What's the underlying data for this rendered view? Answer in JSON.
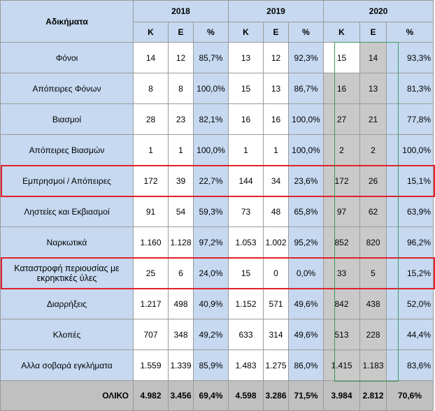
{
  "header": {
    "title": "Αδικήματα",
    "years": [
      "2018",
      "2019",
      "2020"
    ],
    "sub": [
      "Κ",
      "Ε",
      "%"
    ]
  },
  "rows": [
    {
      "label": "Φόνοι",
      "v": [
        "14",
        "12",
        "85,7%",
        "13",
        "12",
        "92,3%",
        "15",
        "14",
        "93,3%"
      ]
    },
    {
      "label": "Απόπειρες Φόνων",
      "v": [
        "8",
        "8",
        "100,0%",
        "15",
        "13",
        "86,7%",
        "16",
        "13",
        "81,3%"
      ]
    },
    {
      "label": "Βιασμοί",
      "v": [
        "28",
        "23",
        "82,1%",
        "16",
        "16",
        "100,0%",
        "27",
        "21",
        "77,8%"
      ]
    },
    {
      "label": "Απόπειρες Βιασμών",
      "v": [
        "1",
        "1",
        "100,0%",
        "1",
        "1",
        "100,0%",
        "2",
        "2",
        "100,0%"
      ]
    },
    {
      "label": "Εμπρησμοί / Απόπειρες",
      "v": [
        "172",
        "39",
        "22,7%",
        "144",
        "34",
        "23,6%",
        "172",
        "26",
        "15,1%"
      ],
      "highlight": true
    },
    {
      "label": "Ληστείες και Εκβιασμοί",
      "v": [
        "91",
        "54",
        "59,3%",
        "73",
        "48",
        "65,8%",
        "97",
        "62",
        "63,9%"
      ]
    },
    {
      "label": "Ναρκωτικά",
      "v": [
        "1.160",
        "1.128",
        "97,2%",
        "1.053",
        "1.002",
        "95,2%",
        "852",
        "820",
        "96,2%"
      ]
    },
    {
      "label": "Καταστροφή περιουσίας με εκρηκτικές ύλες",
      "v": [
        "25",
        "6",
        "24,0%",
        "15",
        "0",
        "0,0%",
        "33",
        "5",
        "15,2%"
      ],
      "highlight": true
    },
    {
      "label": "Διαρρήξεις",
      "v": [
        "1.217",
        "498",
        "40,9%",
        "1.152",
        "571",
        "49,6%",
        "842",
        "438",
        "52,0%"
      ]
    },
    {
      "label": "Κλοπές",
      "v": [
        "707",
        "348",
        "49,2%",
        "633",
        "314",
        "49,6%",
        "513",
        "228",
        "44,4%"
      ]
    },
    {
      "label": "Αλλα σοβαρά εγκλήματα",
      "v": [
        "1.559",
        "1.339",
        "85,9%",
        "1.483",
        "1.275",
        "86,0%",
        "1.415",
        "1.183",
        "83,6%"
      ]
    }
  ],
  "total": {
    "label": "ΟΛΙΚΟ",
    "v": [
      "4.982",
      "3.456",
      "69,4%",
      "4.598",
      "3.286",
      "71,5%",
      "3.984",
      "2.812",
      "70,6%"
    ]
  },
  "colors": {
    "header_blue": "#c6d9f1",
    "gray_2020": "#c9c9c9",
    "total_gray": "#c0c0c0",
    "highlight_red": "#e0212b",
    "selection_green": "#3a9a5c"
  }
}
